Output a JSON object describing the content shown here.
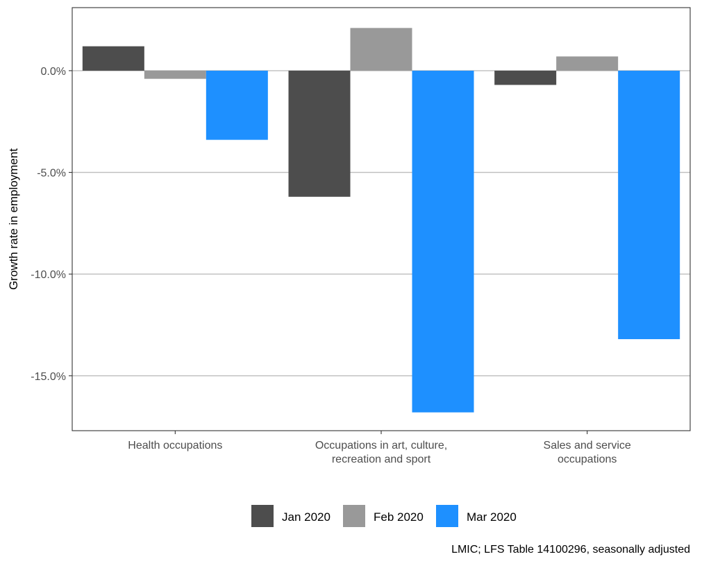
{
  "chart_data": {
    "type": "bar",
    "categories": [
      [
        "Health occupations"
      ],
      [
        "Occupations in art, culture,",
        "recreation and sport"
      ],
      [
        "Sales and service",
        "occupations"
      ]
    ],
    "series": [
      {
        "name": "Jan 2020",
        "color": "#4d4d4d",
        "values": [
          1.2,
          -6.2,
          -0.7
        ]
      },
      {
        "name": "Feb 2020",
        "color": "#999999",
        "values": [
          -0.4,
          2.1,
          0.7
        ]
      },
      {
        "name": "Mar 2020",
        "color": "#1e90ff",
        "values": [
          -3.4,
          -16.8,
          -13.2
        ]
      }
    ],
    "ylabel": "Growth rate in employment",
    "xlabel": "",
    "ylim": [
      -17.7,
      3.1
    ],
    "yticks": [
      0,
      -5,
      -10,
      -15
    ],
    "ytick_labels": [
      "0.0%",
      "-5.0%",
      "-10.0%",
      "-15.0%"
    ],
    "grid": "horizontal major",
    "legend_position": "bottom",
    "caption": "LMIC; LFS Table 14100296, seasonally adjusted"
  }
}
